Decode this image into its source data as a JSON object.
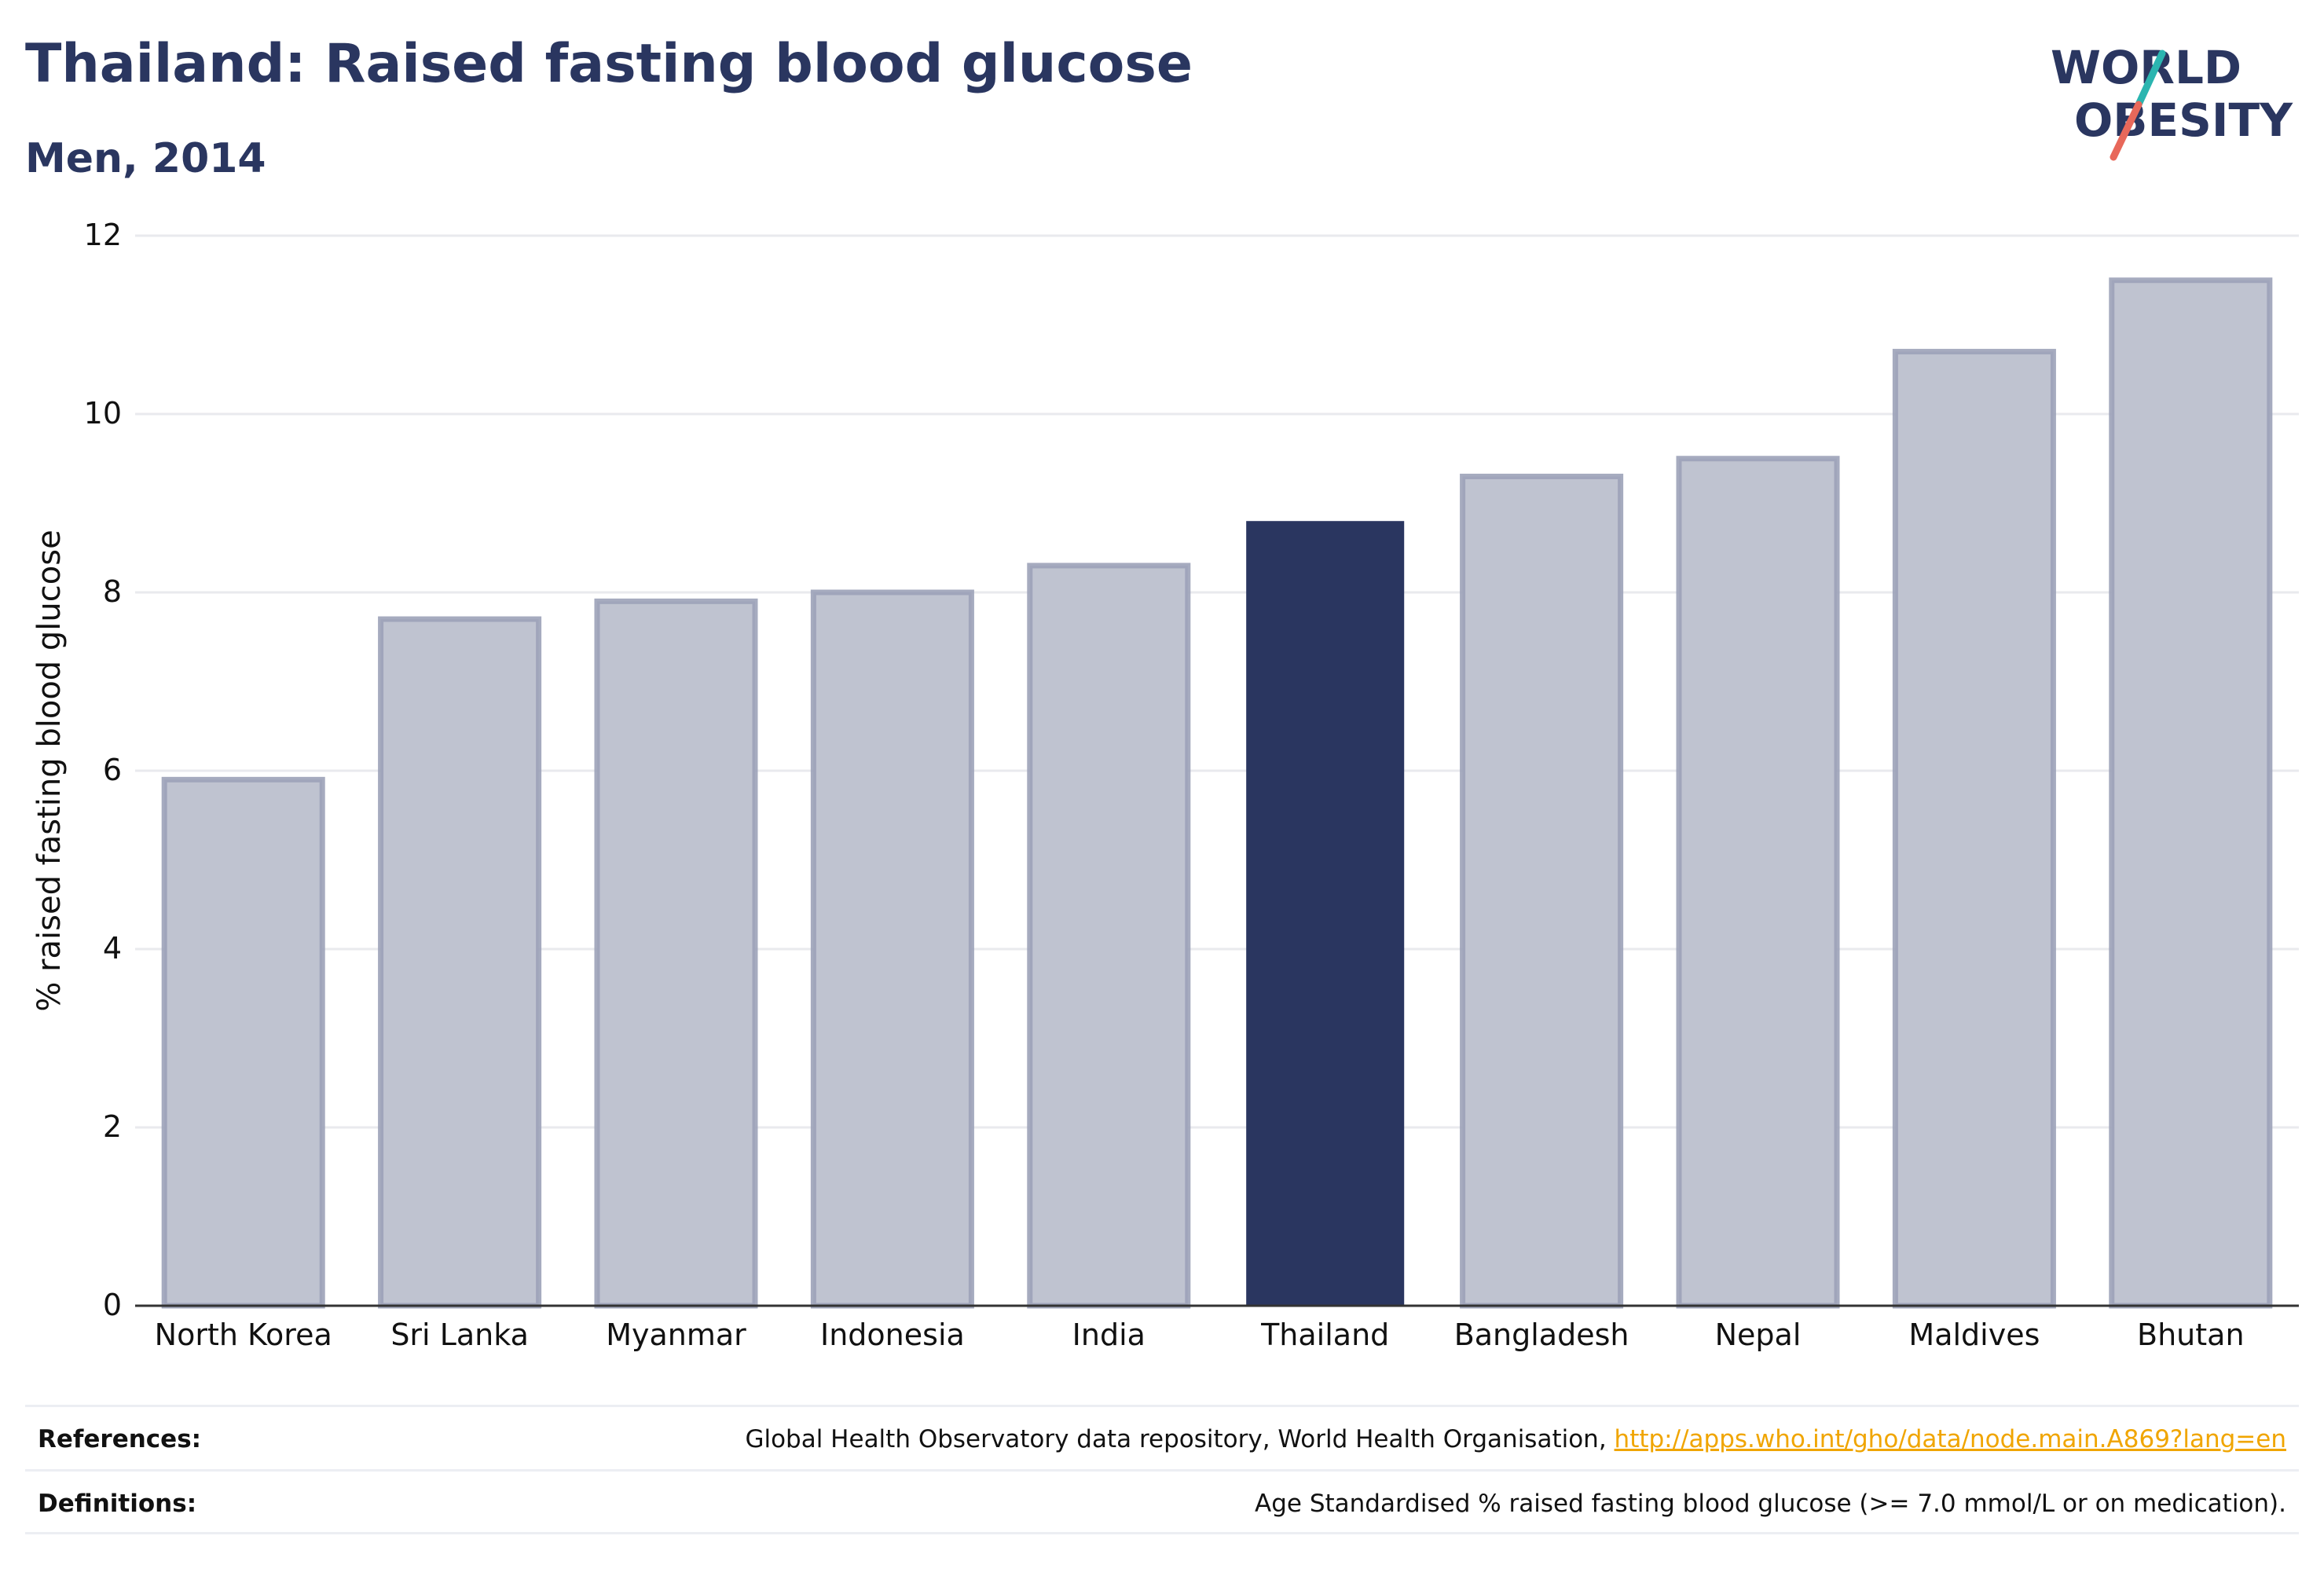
{
  "header": {
    "title": "Thailand: Raised fasting blood glucose",
    "subtitle": "Men, 2014"
  },
  "logo": {
    "line1": "WORLD",
    "line2": "OBESITY",
    "colors": {
      "text": "#2a3660",
      "teal": "#2bb5b0",
      "coral": "#e8685a"
    }
  },
  "footer": {
    "references_label": "References:",
    "references_text": "Global Health Observatory data repository, World Health Organisation,",
    "references_link": "http://apps.who.int/gho/data/node.main.A869?lang=en",
    "definitions_label": "Definitions:",
    "definitions_text": "Age Standardised % raised fasting blood glucose (>= 7.0 mmol/L or on medication)."
  },
  "chart_data": {
    "type": "bar",
    "categories": [
      "North Korea",
      "Sri Lanka",
      "Myanmar",
      "Indonesia",
      "India",
      "Thailand",
      "Bangladesh",
      "Nepal",
      "Maldives",
      "Bhutan"
    ],
    "values": [
      5.9,
      7.7,
      7.9,
      8.0,
      8.3,
      8.8,
      9.3,
      9.5,
      10.7,
      11.5
    ],
    "highlight": "Thailand",
    "ylabel": "% raised fasting blood glucose",
    "xlabel": "",
    "ylim": [
      0,
      12
    ],
    "yticks": [
      0,
      2,
      4,
      6,
      8,
      10,
      12
    ],
    "grid": true,
    "colors": {
      "bar": "#bfc3d0",
      "bar_edge": "#9ca2b8",
      "highlight": "#2a3660",
      "grid": "#e9eaee"
    }
  }
}
